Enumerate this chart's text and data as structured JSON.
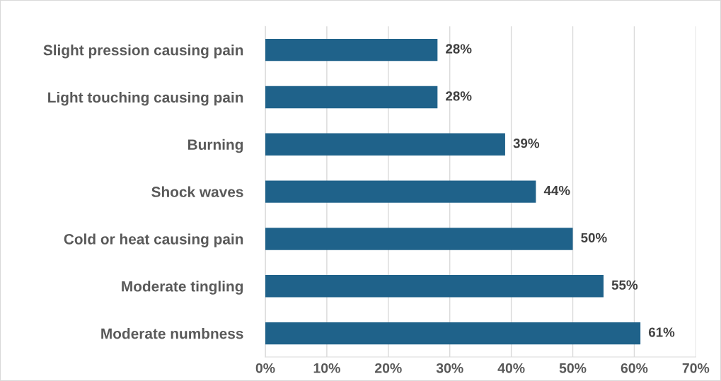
{
  "chart_data": {
    "type": "bar",
    "orientation": "horizontal",
    "categories": [
      "Slight pression causing pain",
      "Light touching causing pain",
      "Burning",
      "Shock waves",
      "Cold or heat causing pain",
      "Moderate tingling",
      "Moderate numbness"
    ],
    "values": [
      28,
      28,
      39,
      44,
      50,
      55,
      61
    ],
    "value_labels": [
      "28%",
      "28%",
      "39%",
      "44%",
      "50%",
      "55%",
      "61%"
    ],
    "color": "#1f628a",
    "xlim": [
      0,
      70
    ],
    "xticks": [
      {
        "value": 0,
        "label": "0%"
      },
      {
        "value": 10,
        "label": "10%"
      },
      {
        "value": 20,
        "label": "20%"
      },
      {
        "value": 30,
        "label": "30%"
      },
      {
        "value": 40,
        "label": "40%"
      },
      {
        "value": 50,
        "label": "50%"
      },
      {
        "value": 60,
        "label": "60%"
      },
      {
        "value": 70,
        "label": "70%"
      }
    ],
    "grid": "x",
    "legend": false
  }
}
